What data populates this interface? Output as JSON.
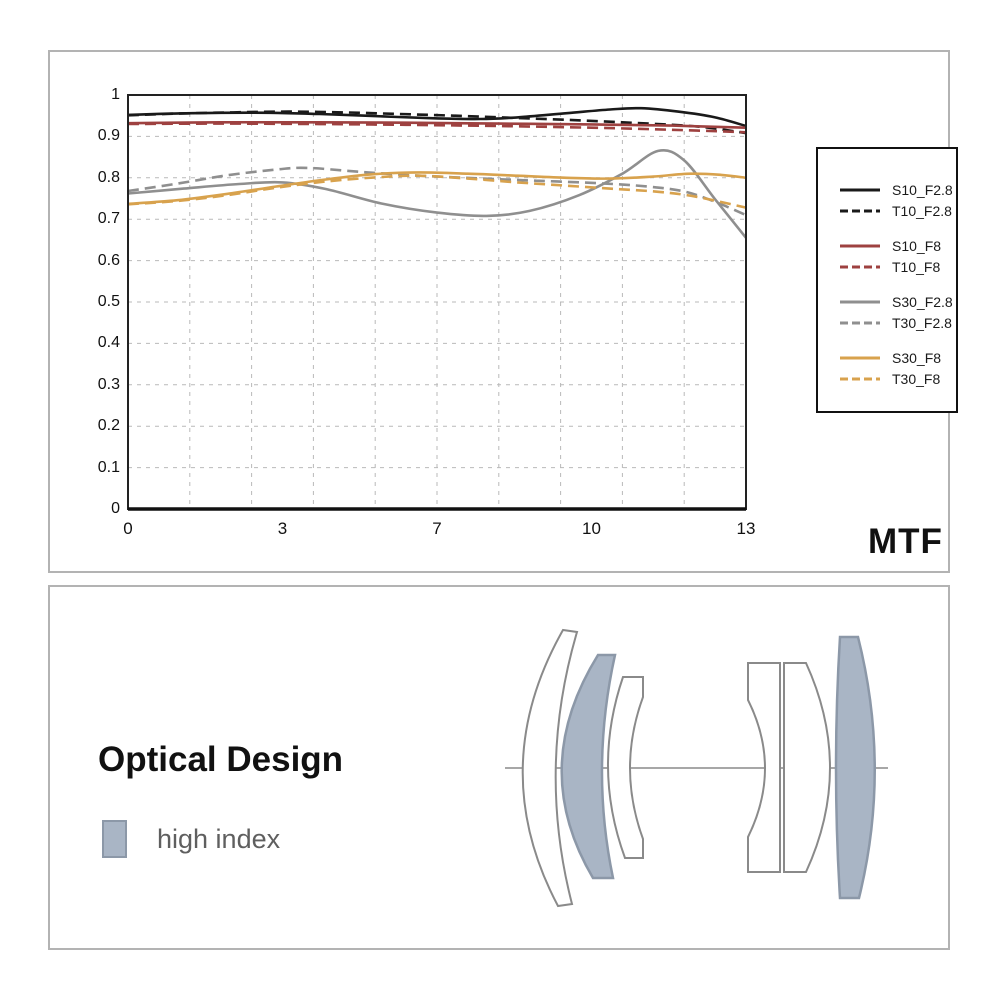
{
  "colors": {
    "s10": "#1a1a1a",
    "s10f8": "#9e4140",
    "s30": "#8f8f8f",
    "s30f8": "#d8a24d",
    "grid": "#b9b9b9",
    "plot_border": "#222222",
    "panel_border": "#b3b3b3",
    "high_index_fill": "#a9b5c5",
    "high_index_stroke": "#8c98a8"
  },
  "mtf_panel": {
    "corner_label": "MTF"
  },
  "optical_panel": {
    "title": "Optical Design",
    "legend_label": "high index"
  },
  "chart_data": {
    "type": "line",
    "title": "MTF",
    "xlabel": "",
    "ylabel": "",
    "ylim": [
      0,
      1
    ],
    "grid": "dashed",
    "legend_position": "right-box",
    "x_tick_labels": [
      "0",
      "3",
      "7",
      "10",
      "13"
    ],
    "x_tick_positions": [
      0,
      0.25,
      0.5,
      0.75,
      1
    ],
    "y_tick_labels": [
      "1",
      "0.9",
      "0.8",
      "0.7",
      "0.6",
      "0.5",
      "0.4",
      "0.3",
      "0.2",
      "0.1",
      "0"
    ],
    "y_tick_values": [
      1,
      0.9,
      0.8,
      0.7,
      0.6,
      0.5,
      0.4,
      0.3,
      0.2,
      0.1,
      0
    ],
    "x_note": "x coordinates below are fractions of axis width (labels 0..13 are evenly spaced)",
    "series": [
      {
        "name": "S10_F2.8",
        "color": "#1a1a1a",
        "dashed": false,
        "points": [
          [
            0,
            0.952
          ],
          [
            0.07,
            0.955
          ],
          [
            0.15,
            0.957
          ],
          [
            0.23,
            0.957
          ],
          [
            0.31,
            0.954
          ],
          [
            0.4,
            0.949
          ],
          [
            0.49,
            0.944
          ],
          [
            0.57,
            0.942
          ],
          [
            0.63,
            0.946
          ],
          [
            0.71,
            0.956
          ],
          [
            0.78,
            0.965
          ],
          [
            0.83,
            0.968
          ],
          [
            0.89,
            0.96
          ],
          [
            0.95,
            0.946
          ],
          [
            1,
            0.925
          ]
        ]
      },
      {
        "name": "T10_F2.8",
        "color": "#1a1a1a",
        "dashed": true,
        "points": [
          [
            0,
            0.951
          ],
          [
            0.08,
            0.955
          ],
          [
            0.17,
            0.958
          ],
          [
            0.26,
            0.96
          ],
          [
            0.35,
            0.958
          ],
          [
            0.44,
            0.954
          ],
          [
            0.53,
            0.95
          ],
          [
            0.62,
            0.945
          ],
          [
            0.71,
            0.94
          ],
          [
            0.8,
            0.934
          ],
          [
            0.88,
            0.928
          ],
          [
            0.94,
            0.921
          ],
          [
            1,
            0.908
          ]
        ]
      },
      {
        "name": "S10_F8",
        "color": "#9e4140",
        "dashed": false,
        "points": [
          [
            0,
            0.932
          ],
          [
            0.15,
            0.934
          ],
          [
            0.3,
            0.934
          ],
          [
            0.45,
            0.933
          ],
          [
            0.6,
            0.931
          ],
          [
            0.75,
            0.929
          ],
          [
            0.88,
            0.926
          ],
          [
            1,
            0.921
          ]
        ]
      },
      {
        "name": "T10_F8",
        "color": "#9e4140",
        "dashed": true,
        "points": [
          [
            0,
            0.93
          ],
          [
            0.15,
            0.931
          ],
          [
            0.3,
            0.93
          ],
          [
            0.45,
            0.928
          ],
          [
            0.6,
            0.925
          ],
          [
            0.75,
            0.921
          ],
          [
            0.88,
            0.916
          ],
          [
            1,
            0.91
          ]
        ]
      },
      {
        "name": "S30_F2.8",
        "color": "#8f8f8f",
        "dashed": false,
        "points": [
          [
            0,
            0.762
          ],
          [
            0.09,
            0.774
          ],
          [
            0.18,
            0.785
          ],
          [
            0.25,
            0.789
          ],
          [
            0.32,
            0.773
          ],
          [
            0.41,
            0.738
          ],
          [
            0.5,
            0.716
          ],
          [
            0.58,
            0.708
          ],
          [
            0.65,
            0.72
          ],
          [
            0.73,
            0.758
          ],
          [
            0.8,
            0.81
          ],
          [
            0.858,
            0.865
          ],
          [
            0.9,
            0.842
          ],
          [
            0.95,
            0.748
          ],
          [
            1,
            0.655
          ]
        ]
      },
      {
        "name": "T30_F2.8",
        "color": "#8f8f8f",
        "dashed": true,
        "points": [
          [
            0,
            0.768
          ],
          [
            0.08,
            0.786
          ],
          [
            0.16,
            0.806
          ],
          [
            0.24,
            0.82
          ],
          [
            0.29,
            0.824
          ],
          [
            0.37,
            0.815
          ],
          [
            0.46,
            0.806
          ],
          [
            0.56,
            0.799
          ],
          [
            0.66,
            0.793
          ],
          [
            0.76,
            0.787
          ],
          [
            0.84,
            0.779
          ],
          [
            0.9,
            0.767
          ],
          [
            0.95,
            0.742
          ],
          [
            1,
            0.71
          ]
        ]
      },
      {
        "name": "S30_F8",
        "color": "#d8a24d",
        "dashed": false,
        "points": [
          [
            0,
            0.737
          ],
          [
            0.08,
            0.746
          ],
          [
            0.16,
            0.761
          ],
          [
            0.24,
            0.779
          ],
          [
            0.32,
            0.796
          ],
          [
            0.4,
            0.809
          ],
          [
            0.47,
            0.813
          ],
          [
            0.55,
            0.81
          ],
          [
            0.63,
            0.805
          ],
          [
            0.71,
            0.8
          ],
          [
            0.78,
            0.798
          ],
          [
            0.85,
            0.803
          ],
          [
            0.91,
            0.81
          ],
          [
            0.96,
            0.807
          ],
          [
            1,
            0.8
          ]
        ]
      },
      {
        "name": "T30_F8",
        "color": "#d8a24d",
        "dashed": true,
        "points": [
          [
            0,
            0.736
          ],
          [
            0.08,
            0.744
          ],
          [
            0.16,
            0.758
          ],
          [
            0.24,
            0.776
          ],
          [
            0.32,
            0.791
          ],
          [
            0.4,
            0.801
          ],
          [
            0.47,
            0.805
          ],
          [
            0.55,
            0.798
          ],
          [
            0.63,
            0.789
          ],
          [
            0.71,
            0.781
          ],
          [
            0.79,
            0.773
          ],
          [
            0.86,
            0.766
          ],
          [
            0.92,
            0.754
          ],
          [
            1,
            0.728
          ]
        ]
      }
    ]
  }
}
